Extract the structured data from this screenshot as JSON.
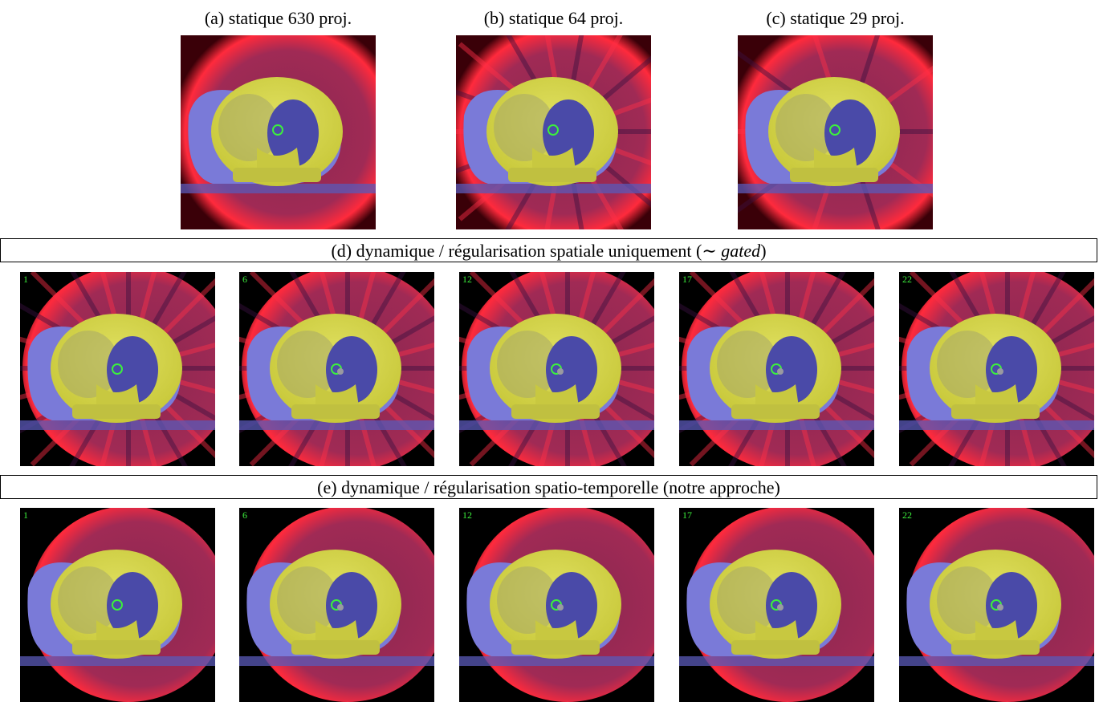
{
  "top_row": {
    "panels": [
      {
        "caption": "(a) statique 630 proj.",
        "kind": "s630"
      },
      {
        "caption": "(b) statique 64 proj.",
        "kind": "s64"
      },
      {
        "caption": "(c) statique 29 proj.",
        "kind": "s29"
      }
    ]
  },
  "row_d": {
    "banner_prefix": "(d) dynamique / régularisation spatiale uniquement (",
    "banner_sym": "∼ ",
    "banner_italic": "gated",
    "banner_suffix": ")",
    "frames": [
      "1",
      "6",
      "12",
      "17",
      "22"
    ]
  },
  "row_e": {
    "banner": "(e) dynamique / régularisation spatio-temporelle (notre approche)",
    "frames": [
      "1",
      "6",
      "12",
      "17",
      "22"
    ]
  },
  "colors": {
    "background_dark": "#000000",
    "halo_red": "#ff2a3c",
    "body_red": "#8a2750",
    "lung_blue": "#4a4aa8",
    "soft_tissue": "#7a7ad8",
    "bone_yellow": "#c8c83a",
    "marker_green": "#3cf03c",
    "text_green": "#3cf03c"
  }
}
